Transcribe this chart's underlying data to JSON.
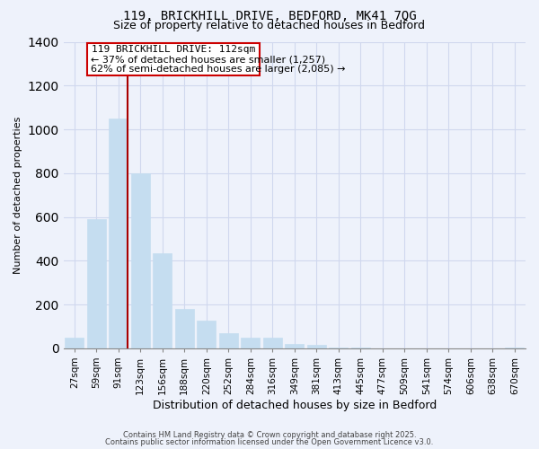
{
  "title_line1": "119, BRICKHILL DRIVE, BEDFORD, MK41 7QG",
  "title_line2": "Size of property relative to detached houses in Bedford",
  "xlabel": "Distribution of detached houses by size in Bedford",
  "ylabel": "Number of detached properties",
  "bar_labels": [
    "27sqm",
    "59sqm",
    "91sqm",
    "123sqm",
    "156sqm",
    "188sqm",
    "220sqm",
    "252sqm",
    "284sqm",
    "316sqm",
    "349sqm",
    "381sqm",
    "413sqm",
    "445sqm",
    "477sqm",
    "509sqm",
    "541sqm",
    "574sqm",
    "606sqm",
    "638sqm",
    "670sqm"
  ],
  "bar_values": [
    50,
    590,
    1050,
    800,
    435,
    180,
    125,
    70,
    50,
    50,
    20,
    15,
    5,
    2,
    1,
    1,
    0,
    0,
    0,
    0,
    5
  ],
  "bar_color": "#c5ddf0",
  "bar_edge_color": "#c5ddf0",
  "ylim": [
    0,
    1400
  ],
  "yticks": [
    0,
    200,
    400,
    600,
    800,
    1000,
    1200,
    1400
  ],
  "vline_color": "#aa0000",
  "annotation_title": "119 BRICKHILL DRIVE: 112sqm",
  "annotation_line1": "← 37% of detached houses are smaller (1,257)",
  "annotation_line2": "62% of semi-detached houses are larger (2,085) →",
  "annotation_box_color": "#ffffff",
  "annotation_box_edge": "#cc0000",
  "footer_line1": "Contains HM Land Registry data © Crown copyright and database right 2025.",
  "footer_line2": "Contains public sector information licensed under the Open Government Licence v3.0.",
  "background_color": "#eef2fb",
  "grid_color": "#d0d8ee"
}
